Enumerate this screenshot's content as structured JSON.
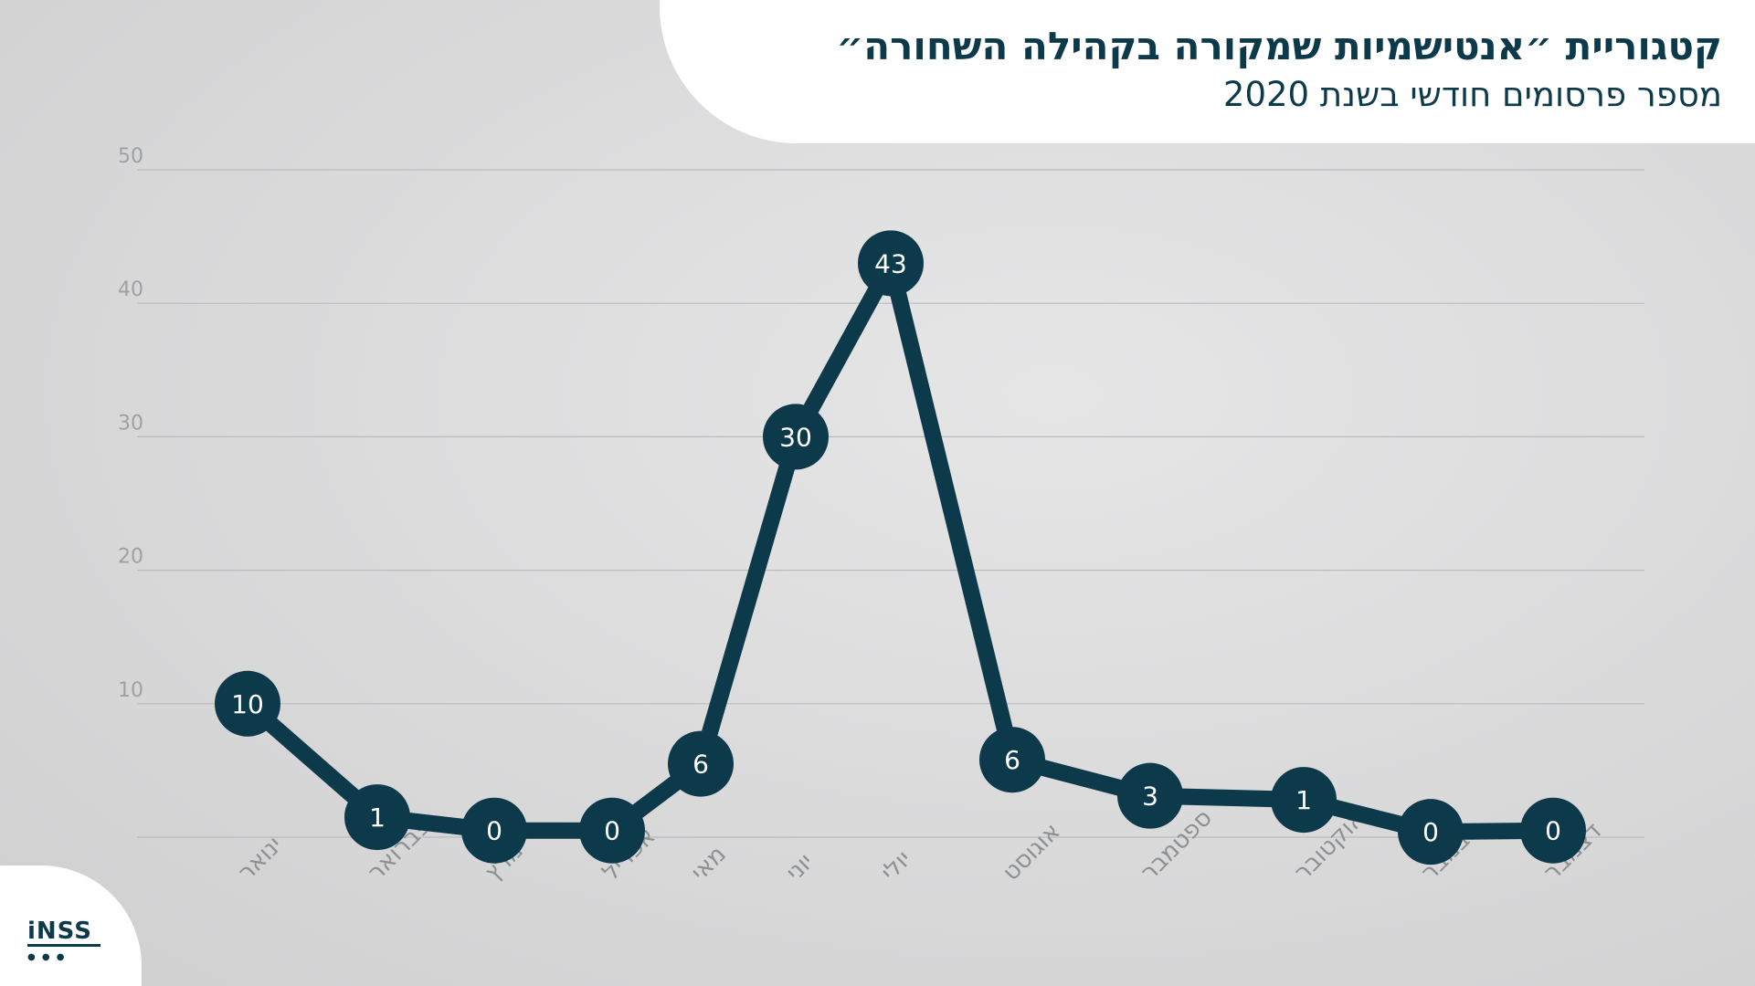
{
  "header": {
    "title": "קטגוריית ״אנטישמיות שמקורה בקהילה השחורה״",
    "subtitle": "מספר פרסומים חודשי בשנת 2020"
  },
  "logo": {
    "text": "iNSS"
  },
  "colors": {
    "line": "#0d3a4b",
    "grid": "#b9bbbd",
    "marker_text": "#ffffff",
    "title": "#0d3a4b"
  },
  "chart_data": {
    "type": "line",
    "title": "קטגוריית ״אנטישמיות שמקורה בקהילה השחורה״",
    "subtitle": "מספר פרסומים חודשי בשנת 2020",
    "categories": [
      "ינואר",
      "פברואר",
      "מרץ",
      "אפריל",
      "מאי",
      "יוני",
      "יולי",
      "אוגוסט",
      "ספטמבר",
      "אוקטובר",
      "נובמבר",
      "דצמבר"
    ],
    "values": [
      10,
      1,
      0,
      0,
      6,
      30,
      43,
      6,
      3,
      1,
      0,
      0
    ],
    "plotted_values": [
      10,
      1.5,
      0.5,
      0.5,
      5.5,
      30,
      43,
      5.8,
      3.1,
      2.8,
      0.4,
      0.5
    ],
    "yticks": [
      10,
      20,
      30,
      40,
      50
    ],
    "ylim": [
      0,
      50
    ],
    "grid": true,
    "legend": "none"
  }
}
